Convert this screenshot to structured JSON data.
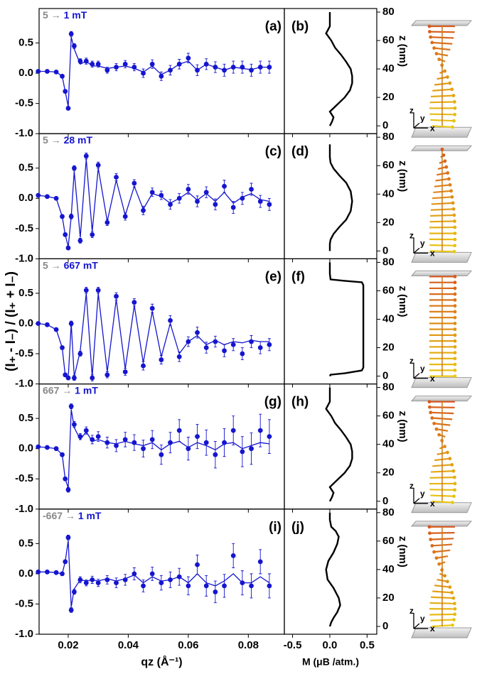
{
  "chart_data": [
    {
      "type": "scatter",
      "field_from": "5 →",
      "field_to": "1 mT",
      "panel": "(a)",
      "xlim": [
        0.0103,
        0.092
      ],
      "ylim": [
        -1,
        1.07
      ],
      "yticks": [
        {
          "value": -1,
          "label": "-1.0"
        },
        -0.5,
        {
          "value": 0,
          "label": "0.0"
        },
        0.5
      ],
      "x": [
        0.01,
        0.013,
        0.016,
        0.018,
        0.019,
        0.02,
        0.021,
        0.022,
        0.024,
        0.026,
        0.028,
        0.03,
        0.033,
        0.036,
        0.039,
        0.042,
        0.045,
        0.048,
        0.051,
        0.054,
        0.057,
        0.06,
        0.063,
        0.066,
        0.069,
        0.072,
        0.075,
        0.078,
        0.081,
        0.084,
        0.087
      ],
      "series": [
        {
          "type": "markers",
          "color": "#1515d0",
          "values": [
            0.03,
            0.03,
            0.02,
            -0.05,
            -0.3,
            -0.58,
            0.65,
            0.45,
            0.2,
            0.2,
            0.15,
            0.15,
            0.05,
            0.1,
            0.15,
            0.1,
            0.0,
            0.15,
            -0.05,
            0.05,
            0.15,
            0.25,
            0.05,
            0.15,
            0.1,
            0.05,
            0.1,
            0.1,
            0.05,
            0.1,
            0.1
          ],
          "errors": [
            0.02,
            0.02,
            0.02,
            0.02,
            0.03,
            0.03,
            0.04,
            0.04,
            0.04,
            0.05,
            0.05,
            0.05,
            0.05,
            0.06,
            0.06,
            0.06,
            0.07,
            0.07,
            0.07,
            0.08,
            0.08,
            0.08,
            0.09,
            0.09,
            0.09,
            0.1,
            0.1,
            0.1,
            0.1,
            0.1,
            0.1
          ]
        },
        {
          "type": "line",
          "color": "#1515d0",
          "values": [
            0.03,
            0.03,
            0.02,
            -0.05,
            -0.3,
            -0.55,
            0.6,
            0.4,
            0.15,
            0.2,
            0.12,
            0.12,
            0.08,
            0.1,
            0.12,
            0.08,
            0.02,
            0.12,
            -0.02,
            0.05,
            0.15,
            0.2,
            0.05,
            0.15,
            0.1,
            0.05,
            0.1,
            0.08,
            0.06,
            0.1,
            0.1
          ]
        }
      ]
    },
    {
      "type": "scatter",
      "field_from": "5 →",
      "field_to": "28 mT",
      "panel": "(c)",
      "xlim": [
        0.0103,
        0.092
      ],
      "ylim": [
        -1,
        1.07
      ],
      "yticks": [
        {
          "value": -1,
          "label": "-1.0"
        },
        -0.5,
        {
          "value": 0,
          "label": "0.0"
        },
        0.5
      ],
      "x": [
        0.01,
        0.013,
        0.016,
        0.018,
        0.019,
        0.02,
        0.021,
        0.022,
        0.024,
        0.026,
        0.028,
        0.03,
        0.033,
        0.036,
        0.039,
        0.042,
        0.045,
        0.048,
        0.051,
        0.054,
        0.057,
        0.06,
        0.063,
        0.066,
        0.069,
        0.072,
        0.075,
        0.078,
        0.081,
        0.084,
        0.087
      ],
      "series": [
        {
          "type": "markers",
          "color": "#1515d0",
          "values": [
            0.05,
            0.03,
            0.0,
            -0.3,
            -0.6,
            -0.82,
            -0.3,
            0.5,
            -0.7,
            0.7,
            -0.6,
            0.55,
            -0.4,
            0.35,
            -0.3,
            0.25,
            -0.2,
            0.1,
            0.05,
            -0.1,
            0.0,
            0.15,
            -0.05,
            0.1,
            -0.1,
            0.2,
            -0.15,
            0.0,
            0.15,
            -0.05,
            -0.1
          ],
          "errors": [
            0.02,
            0.02,
            0.02,
            0.03,
            0.03,
            0.03,
            0.04,
            0.04,
            0.04,
            0.05,
            0.05,
            0.05,
            0.05,
            0.06,
            0.06,
            0.06,
            0.07,
            0.07,
            0.07,
            0.08,
            0.08,
            0.08,
            0.09,
            0.09,
            0.09,
            0.1,
            0.1,
            0.1,
            0.1,
            0.1,
            0.1
          ]
        },
        {
          "type": "line",
          "color": "#1515d0",
          "values": [
            0.05,
            0.03,
            0.0,
            -0.3,
            -0.6,
            -0.8,
            -0.3,
            0.45,
            -0.65,
            0.65,
            -0.55,
            0.5,
            -0.38,
            0.3,
            -0.28,
            0.2,
            -0.18,
            0.08,
            0.03,
            -0.08,
            0.0,
            0.1,
            -0.03,
            0.08,
            -0.05,
            0.1,
            -0.08,
            0.02,
            0.08,
            -0.02,
            -0.05
          ]
        }
      ]
    },
    {
      "type": "scatter",
      "field_from": "5 →",
      "field_to": "667 mT",
      "panel": "(e)",
      "xlim": [
        0.0103,
        0.092
      ],
      "ylim": [
        -1,
        1.07
      ],
      "ylabel": "(I₊ - I₋) / (I₊ + I₋)",
      "yticks": [
        {
          "value": -1,
          "label": "-1.0"
        },
        -0.5,
        {
          "value": 0,
          "label": "0.0"
        },
        0.5
      ],
      "x": [
        0.01,
        0.013,
        0.016,
        0.018,
        0.019,
        0.02,
        0.021,
        0.022,
        0.024,
        0.026,
        0.028,
        0.03,
        0.033,
        0.036,
        0.039,
        0.042,
        0.045,
        0.048,
        0.051,
        0.054,
        0.057,
        0.06,
        0.063,
        0.066,
        0.069,
        0.072,
        0.075,
        0.078,
        0.081,
        0.084,
        0.087
      ],
      "series": [
        {
          "type": "markers",
          "color": "#1515d0",
          "values": [
            0.0,
            -0.02,
            -0.1,
            -0.4,
            -0.85,
            -0.9,
            0.0,
            -0.9,
            -0.5,
            0.55,
            -0.9,
            0.55,
            -0.85,
            0.45,
            -0.8,
            0.35,
            -0.7,
            0.25,
            -0.6,
            0.05,
            -0.55,
            -0.3,
            -0.15,
            -0.4,
            -0.3,
            -0.45,
            -0.35,
            -0.5,
            -0.3,
            -0.4,
            -0.35
          ],
          "errors": [
            0.02,
            0.02,
            0.02,
            0.03,
            0.03,
            0.03,
            0.04,
            0.04,
            0.04,
            0.05,
            0.05,
            0.05,
            0.05,
            0.06,
            0.06,
            0.06,
            0.07,
            0.07,
            0.07,
            0.08,
            0.08,
            0.08,
            0.09,
            0.09,
            0.09,
            0.1,
            0.1,
            0.1,
            0.1,
            0.1,
            0.1
          ]
        },
        {
          "type": "line",
          "color": "#1515d0",
          "values": [
            0.0,
            -0.02,
            -0.1,
            -0.4,
            -0.85,
            -0.9,
            0.0,
            -0.88,
            -0.45,
            0.5,
            -0.88,
            0.5,
            -0.8,
            0.4,
            -0.75,
            0.3,
            -0.65,
            0.2,
            -0.55,
            0.0,
            -0.5,
            -0.3,
            -0.2,
            -0.35,
            -0.28,
            -0.35,
            -0.3,
            -0.32,
            -0.28,
            -0.3,
            -0.3
          ]
        }
      ]
    },
    {
      "type": "scatter",
      "field_from": "667 →",
      "field_to": "1 mT",
      "panel": "(g)",
      "xlim": [
        0.0103,
        0.092
      ],
      "ylim": [
        -1,
        1.07
      ],
      "yticks": [
        {
          "value": -1,
          "label": "-1.0"
        },
        -0.5,
        {
          "value": 0,
          "label": "0.0"
        },
        0.5
      ],
      "x": [
        0.01,
        0.013,
        0.016,
        0.018,
        0.019,
        0.02,
        0.021,
        0.022,
        0.024,
        0.026,
        0.028,
        0.03,
        0.033,
        0.036,
        0.039,
        0.042,
        0.045,
        0.048,
        0.051,
        0.054,
        0.057,
        0.06,
        0.063,
        0.066,
        0.069,
        0.072,
        0.075,
        0.078,
        0.081,
        0.084,
        0.087
      ],
      "series": [
        {
          "type": "markers",
          "color": "#1515d0",
          "values": [
            0.03,
            0.02,
            0.0,
            -0.1,
            -0.5,
            -0.68,
            0.7,
            0.4,
            0.2,
            0.3,
            0.15,
            0.2,
            0.1,
            0.05,
            0.15,
            0.1,
            0.0,
            0.15,
            -0.1,
            0.1,
            0.3,
            0.0,
            0.2,
            0.1,
            -0.1,
            0.1,
            0.3,
            -0.05,
            0.0,
            0.3,
            0.2
          ],
          "errors": [
            0.02,
            0.02,
            0.03,
            0.03,
            0.03,
            0.04,
            0.04,
            0.05,
            0.05,
            0.06,
            0.07,
            0.08,
            0.09,
            0.1,
            0.12,
            0.13,
            0.14,
            0.15,
            0.16,
            0.17,
            0.18,
            0.19,
            0.2,
            0.21,
            0.22,
            0.23,
            0.24,
            0.25,
            0.26,
            0.27,
            0.28
          ]
        },
        {
          "type": "line",
          "color": "#1515d0",
          "values": [
            0.03,
            0.02,
            0.0,
            -0.1,
            -0.5,
            -0.65,
            0.65,
            0.35,
            0.15,
            0.28,
            0.12,
            0.15,
            0.1,
            0.08,
            0.12,
            0.08,
            0.05,
            0.1,
            -0.02,
            0.08,
            0.12,
            0.02,
            0.1,
            0.05,
            -0.02,
            0.08,
            0.1,
            0.0,
            0.05,
            0.1,
            0.08
          ]
        }
      ]
    },
    {
      "type": "scatter",
      "field_from": "-667 →",
      "field_to": "1 mT",
      "panel": "(i)",
      "xlim": [
        0.0103,
        0.092
      ],
      "ylim": [
        -1,
        1.07
      ],
      "xlabel": "qz (Å⁻¹)",
      "xticks": [
        0.02,
        0.04,
        0.06,
        0.08
      ],
      "yticks": [
        {
          "value": -1,
          "label": "-1.0"
        },
        -0.5,
        {
          "value": 0,
          "label": "0.0"
        },
        0.5
      ],
      "x": [
        0.01,
        0.013,
        0.016,
        0.018,
        0.019,
        0.02,
        0.021,
        0.022,
        0.024,
        0.026,
        0.028,
        0.03,
        0.033,
        0.036,
        0.039,
        0.042,
        0.045,
        0.048,
        0.051,
        0.054,
        0.057,
        0.06,
        0.063,
        0.066,
        0.069,
        0.072,
        0.075,
        0.078,
        0.081,
        0.084,
        0.087
      ],
      "series": [
        {
          "type": "markers",
          "color": "#1515d0",
          "values": [
            0.03,
            0.03,
            0.02,
            0.0,
            0.2,
            0.6,
            -0.6,
            -0.3,
            -0.1,
            -0.15,
            -0.1,
            -0.15,
            -0.1,
            -0.15,
            -0.1,
            0.0,
            -0.2,
            0.0,
            -0.15,
            -0.1,
            -0.05,
            -0.2,
            0.15,
            -0.2,
            -0.3,
            -0.2,
            0.3,
            -0.15,
            -0.2,
            0.2,
            -0.2
          ],
          "errors": [
            0.02,
            0.02,
            0.02,
            0.03,
            0.03,
            0.04,
            0.04,
            0.04,
            0.05,
            0.05,
            0.06,
            0.06,
            0.07,
            0.08,
            0.09,
            0.1,
            0.1,
            0.11,
            0.12,
            0.13,
            0.14,
            0.15,
            0.16,
            0.17,
            0.18,
            0.19,
            0.2,
            0.2,
            0.2,
            0.2,
            0.2
          ]
        },
        {
          "type": "line",
          "color": "#1515d0",
          "values": [
            0.03,
            0.03,
            0.02,
            0.0,
            0.2,
            0.55,
            -0.55,
            -0.25,
            -0.1,
            -0.12,
            -0.1,
            -0.12,
            -0.08,
            -0.12,
            -0.08,
            -0.02,
            -0.15,
            -0.05,
            -0.12,
            -0.1,
            -0.05,
            -0.15,
            0.0,
            -0.15,
            -0.2,
            -0.12,
            0.0,
            -0.15,
            -0.15,
            -0.05,
            -0.15
          ]
        }
      ]
    },
    {
      "type": "line",
      "panel": "(b)",
      "ylabel": "z (nm)",
      "frame_labels": [
        "z",
        "y",
        "x"
      ],
      "xlim": [
        -0.61,
        0.63
      ],
      "ylim": [
        -5.5,
        82.5
      ],
      "yticks": [
        0,
        20,
        40,
        60,
        80
      ],
      "x": [
        0,
        0.03,
        0.05,
        0.0,
        0.1,
        0.2,
        0.27,
        0.3,
        0.3,
        0.28,
        0.22,
        0.15,
        0.07,
        0.02,
        -0.05,
        -0.02,
        0,
        0,
        0
      ],
      "y": [
        0,
        3,
        6,
        10,
        15,
        20,
        25,
        30,
        35,
        40,
        45,
        50,
        55,
        60,
        65,
        68,
        70,
        75,
        80
      ]
    },
    {
      "type": "line",
      "panel": "(d)",
      "ylabel": "z (nm)",
      "frame_labels": [
        "z",
        "y",
        "x"
      ],
      "xlim": [
        -0.61,
        0.63
      ],
      "ylim": [
        -5.5,
        82.5
      ],
      "yticks": [
        0,
        20,
        40,
        60,
        80
      ],
      "x": [
        0,
        0,
        0.01,
        0.05,
        0.13,
        0.22,
        0.28,
        0.3,
        0.28,
        0.22,
        0.13,
        0.05,
        0.01,
        0,
        0
      ],
      "y": [
        0,
        5,
        8,
        12,
        17,
        22,
        28,
        35,
        42,
        48,
        53,
        58,
        62,
        66,
        75
      ]
    },
    {
      "type": "line",
      "panel": "(f)",
      "ylabel": "z (nm)",
      "frame_labels": [
        "z",
        "y",
        "x"
      ],
      "xlim": [
        -0.61,
        0.63
      ],
      "ylim": [
        -5.5,
        82.5
      ],
      "yticks": [
        0,
        20,
        40,
        60,
        80
      ],
      "x": [
        0,
        0.01,
        0.2,
        0.43,
        0.45,
        0.45,
        0.45,
        0.43,
        0.2,
        0.01,
        0,
        0
      ],
      "y": [
        0,
        1,
        2,
        4,
        6,
        30,
        64,
        66,
        67,
        68,
        72,
        80
      ]
    },
    {
      "type": "line",
      "panel": "(h)",
      "ylabel": "z (nm)",
      "frame_labels": [
        "z",
        "y",
        "x"
      ],
      "xlim": [
        -0.61,
        0.63
      ],
      "ylim": [
        -5.5,
        82.5
      ],
      "yticks": [
        0,
        20,
        40,
        60,
        80
      ],
      "x": [
        0,
        0.03,
        0.05,
        0.0,
        0.1,
        0.2,
        0.27,
        0.3,
        0.3,
        0.28,
        0.22,
        0.15,
        0.07,
        0.02,
        -0.05,
        -0.02,
        0,
        0,
        0
      ],
      "y": [
        0,
        3,
        6,
        10,
        15,
        20,
        25,
        30,
        35,
        40,
        45,
        50,
        55,
        60,
        65,
        68,
        70,
        75,
        80
      ]
    },
    {
      "type": "line",
      "panel": "(j)",
      "ylabel": "z (nm)",
      "frame_labels": [
        "z",
        "y",
        "x"
      ],
      "xlim": [
        -0.61,
        0.63
      ],
      "ylim": [
        -5.5,
        82.5
      ],
      "yticks": [
        0,
        20,
        40,
        60,
        80
      ],
      "xlabel": "M (μB /atm.)",
      "xticks": [
        -0.5,
        {
          "value": 0,
          "label": "0.0"
        },
        0.5
      ],
      "x": [
        0,
        0.02,
        0.05,
        0.1,
        0.14,
        0.12,
        0.05,
        -0.03,
        -0.05,
        -0.02,
        0.05,
        0.1,
        0.12,
        0.08,
        0.02,
        0,
        0
      ],
      "y": [
        0,
        3,
        6,
        10,
        15,
        20,
        27,
        33,
        40,
        46,
        52,
        58,
        63,
        67,
        70,
        75,
        80
      ]
    }
  ]
}
